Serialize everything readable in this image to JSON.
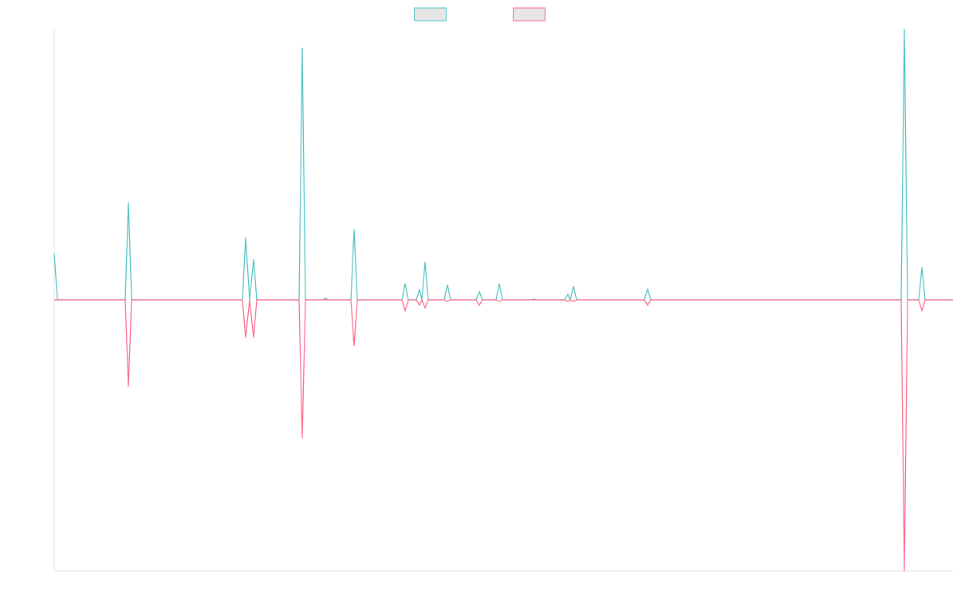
{
  "chart_data": {
    "type": "line",
    "x": [
      0,
      4,
      89,
      93,
      97,
      236,
      240,
      245,
      250,
      254,
      307,
      311,
      315,
      337,
      340,
      344,
      372,
      376,
      380,
      436,
      440,
      444,
      454,
      458,
      461,
      465,
      469,
      489,
      493,
      497,
      529,
      533,
      537,
      554,
      558,
      562,
      598,
      601,
      605,
      640,
      644,
      647,
      651,
      655,
      740,
      744,
      748,
      1062,
      1066,
      1070,
      1084,
      1088,
      1092,
      1127
    ],
    "series": [
      {
        "color": "#4bc0c0",
        "values": [
          17,
          0,
          0,
          36,
          0,
          0,
          23,
          0,
          15,
          0,
          0,
          93,
          0,
          0,
          0.6,
          0,
          0,
          26,
          0,
          0,
          6,
          0,
          0,
          4,
          0,
          14,
          0,
          0,
          5.6,
          0,
          0,
          3,
          0,
          0,
          6,
          0,
          0,
          0.3,
          0,
          0,
          2,
          0,
          5,
          0,
          0,
          4,
          0,
          0,
          100,
          0,
          0,
          12,
          0,
          0
        ]
      },
      {
        "color": "#ff6384",
        "values": [
          0,
          0,
          0,
          -32,
          0,
          0,
          -14,
          0,
          -14,
          0,
          0,
          -51,
          0,
          0,
          0,
          0,
          0,
          -17,
          0,
          0,
          -4,
          0,
          0,
          -2,
          0,
          -3,
          0,
          0,
          -0.6,
          0,
          0,
          -2,
          0,
          0,
          -0.6,
          0,
          0,
          0,
          0,
          0,
          -0.6,
          0,
          -0.6,
          0,
          0,
          -2,
          0,
          0,
          -100,
          0,
          0,
          -4,
          0,
          0
        ]
      }
    ],
    "xlim": [
      0,
      1127
    ],
    "ylim": [
      -100,
      100
    ]
  }
}
